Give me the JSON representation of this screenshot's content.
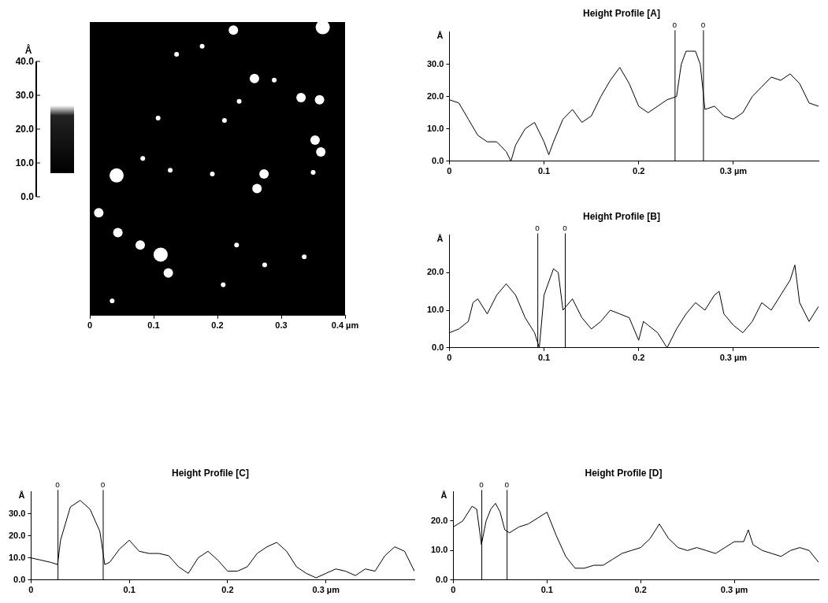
{
  "chart_data": [
    {
      "type": "image",
      "xlim": [
        0,
        0.4
      ],
      "ylim": [
        0,
        0.4
      ],
      "xticks": [
        0,
        0.1,
        0.2,
        0.3,
        {
          "value": 0.4,
          "label": "0.4 µm"
        }
      ],
      "tick_labels": "x",
      "grid": false,
      "color": "#ffffff",
      "spots": {
        "x": [
          0.365,
          0.225,
          0.176,
          0.136,
          0.289,
          0.258,
          0.331,
          0.36,
          0.234,
          0.107,
          0.211,
          0.042,
          0.083,
          0.126,
          0.192,
          0.273,
          0.262,
          0.353,
          0.362,
          0.35,
          0.014,
          0.044,
          0.079,
          0.111,
          0.123,
          0.209,
          0.23,
          0.274,
          0.336,
          0.035
        ],
        "y": [
          0.393,
          0.389,
          0.367,
          0.356,
          0.321,
          0.323,
          0.297,
          0.294,
          0.292,
          0.269,
          0.266,
          0.191,
          0.214,
          0.198,
          0.193,
          0.193,
          0.173,
          0.239,
          0.223,
          0.195,
          0.14,
          0.113,
          0.096,
          0.083,
          0.058,
          0.042,
          0.096,
          0.069,
          0.08,
          0.02
        ],
        "size": [
          3,
          2,
          1,
          1,
          1,
          2,
          2,
          2,
          1,
          1,
          1,
          3,
          1,
          1,
          1,
          2,
          2,
          2,
          2,
          1,
          2,
          2,
          2,
          3,
          2,
          1,
          1,
          1,
          1,
          1
        ]
      },
      "colorbar": {
        "title": "Å",
        "range": [
          0,
          40
        ],
        "ticks": [
          {
            "value": 0,
            "label": "0.0"
          },
          {
            "value": 10,
            "label": "10.0"
          },
          {
            "value": 20,
            "label": "20.0"
          },
          {
            "value": 30,
            "label": "30.0"
          },
          {
            "value": 40,
            "label": "40.0"
          }
        ],
        "span": [
          7,
          27
        ]
      }
    },
    {
      "type": "line",
      "title": "Height Profile [A]",
      "y_label": "Å",
      "color": "#000000",
      "grid": false,
      "xlim": [
        0,
        0.39
      ],
      "ylim": [
        0,
        40
      ],
      "xticks": [
        0,
        0.1,
        0.2,
        {
          "value": 0.3,
          "label": "0.3 µm"
        }
      ],
      "yticks": [
        {
          "value": 0,
          "label": "0.0"
        },
        {
          "value": 10,
          "label": "10.0"
        },
        {
          "value": 20,
          "label": "20.0"
        },
        {
          "value": 30,
          "label": "30.0"
        }
      ],
      "cursors": [
        {
          "x": 0.238,
          "label": "o"
        },
        {
          "x": 0.268,
          "label": "o"
        }
      ],
      "x": [
        0,
        0.01,
        0.02,
        0.03,
        0.04,
        0.05,
        0.06,
        0.065,
        0.07,
        0.08,
        0.09,
        0.1,
        0.105,
        0.11,
        0.12,
        0.13,
        0.14,
        0.15,
        0.16,
        0.17,
        0.18,
        0.19,
        0.2,
        0.21,
        0.22,
        0.23,
        0.24,
        0.245,
        0.25,
        0.26,
        0.265,
        0.27,
        0.28,
        0.29,
        0.3,
        0.31,
        0.32,
        0.33,
        0.34,
        0.35,
        0.36,
        0.37,
        0.38,
        0.39
      ],
      "values": [
        19,
        18,
        13,
        8,
        6,
        6,
        3,
        0,
        5,
        10,
        12,
        6,
        2,
        6,
        13,
        16,
        12,
        14,
        20,
        25,
        29,
        24,
        17,
        15,
        17,
        19,
        20,
        30,
        34,
        34,
        30,
        16,
        17,
        14,
        13,
        15,
        20,
        23,
        26,
        25,
        27,
        24,
        18,
        17
      ]
    },
    {
      "type": "line",
      "title": "Height Profile [B]",
      "y_label": "Å",
      "color": "#000000",
      "grid": false,
      "xlim": [
        0,
        0.39
      ],
      "ylim": [
        0,
        30
      ],
      "xticks": [
        0,
        0.1,
        0.2,
        {
          "value": 0.3,
          "label": "0.3 µm"
        }
      ],
      "yticks": [
        {
          "value": 0,
          "label": "0.0"
        },
        {
          "value": 10,
          "label": "10.0"
        },
        {
          "value": 20,
          "label": "20.0"
        }
      ],
      "cursors": [
        {
          "x": 0.093,
          "label": "o"
        },
        {
          "x": 0.122,
          "label": "o"
        }
      ],
      "x": [
        0,
        0.01,
        0.02,
        0.025,
        0.03,
        0.04,
        0.05,
        0.06,
        0.07,
        0.08,
        0.09,
        0.095,
        0.1,
        0.11,
        0.115,
        0.12,
        0.13,
        0.14,
        0.15,
        0.16,
        0.17,
        0.18,
        0.19,
        0.2,
        0.205,
        0.21,
        0.22,
        0.23,
        0.24,
        0.25,
        0.26,
        0.27,
        0.28,
        0.285,
        0.29,
        0.3,
        0.31,
        0.32,
        0.33,
        0.34,
        0.35,
        0.36,
        0.365,
        0.37,
        0.38,
        0.39
      ],
      "values": [
        4,
        5,
        7,
        12,
        13,
        9,
        14,
        17,
        14,
        8,
        4,
        0,
        14,
        21,
        20,
        10,
        13,
        8,
        5,
        7,
        10,
        9,
        8,
        2,
        7,
        6,
        4,
        0,
        5,
        9,
        12,
        10,
        14,
        15,
        9,
        6,
        4,
        7,
        12,
        10,
        14,
        18,
        22,
        12,
        7,
        11
      ]
    },
    {
      "type": "line",
      "title": "Height Profile [C]",
      "y_label": "Å",
      "color": "#000000",
      "grid": false,
      "xlim": [
        0,
        0.39
      ],
      "ylim": [
        0,
        40
      ],
      "xticks": [
        0,
        0.1,
        0.2,
        {
          "value": 0.3,
          "label": "0.3 µm"
        }
      ],
      "yticks": [
        {
          "value": 0,
          "label": "0.0"
        },
        {
          "value": 10,
          "label": "10.0"
        },
        {
          "value": 20,
          "label": "20.0"
        },
        {
          "value": 30,
          "label": "30.0"
        }
      ],
      "cursors": [
        {
          "x": 0.027,
          "label": "o"
        },
        {
          "x": 0.073,
          "label": "o"
        }
      ],
      "x": [
        0,
        0.01,
        0.02,
        0.027,
        0.03,
        0.04,
        0.05,
        0.06,
        0.07,
        0.075,
        0.08,
        0.09,
        0.1,
        0.11,
        0.12,
        0.13,
        0.14,
        0.15,
        0.16,
        0.17,
        0.18,
        0.19,
        0.2,
        0.21,
        0.22,
        0.23,
        0.24,
        0.25,
        0.26,
        0.27,
        0.28,
        0.29,
        0.3,
        0.31,
        0.32,
        0.33,
        0.34,
        0.35,
        0.36,
        0.37,
        0.38,
        0.39
      ],
      "values": [
        10,
        9,
        8,
        7,
        18,
        33,
        36,
        32,
        22,
        7,
        8,
        14,
        18,
        13,
        12,
        12,
        11,
        6,
        3,
        10,
        13,
        9,
        4,
        4,
        6,
        12,
        15,
        17,
        13,
        6,
        3,
        1,
        3,
        5,
        4,
        2,
        5,
        4,
        11,
        15,
        13,
        4
      ]
    },
    {
      "type": "line",
      "title": "Height Profile [D]",
      "y_label": "Å",
      "color": "#000000",
      "grid": false,
      "xlim": [
        0,
        0.39
      ],
      "ylim": [
        0,
        30
      ],
      "xticks": [
        0,
        0.1,
        0.2,
        {
          "value": 0.3,
          "label": "0.3 µm"
        }
      ],
      "yticks": [
        {
          "value": 0,
          "label": "0.0"
        },
        {
          "value": 10,
          "label": "10.0"
        },
        {
          "value": 20,
          "label": "20.0"
        }
      ],
      "cursors": [
        {
          "x": 0.03,
          "label": "o"
        },
        {
          "x": 0.057,
          "label": "o"
        }
      ],
      "x": [
        0,
        0.01,
        0.02,
        0.025,
        0.03,
        0.035,
        0.04,
        0.045,
        0.05,
        0.055,
        0.06,
        0.07,
        0.08,
        0.09,
        0.1,
        0.11,
        0.12,
        0.13,
        0.14,
        0.15,
        0.16,
        0.17,
        0.18,
        0.19,
        0.2,
        0.21,
        0.22,
        0.23,
        0.24,
        0.25,
        0.26,
        0.27,
        0.28,
        0.29,
        0.3,
        0.31,
        0.315,
        0.32,
        0.33,
        0.34,
        0.35,
        0.36,
        0.37,
        0.38,
        0.39
      ],
      "values": [
        18,
        20,
        25,
        24,
        12,
        20,
        24,
        26,
        23,
        17,
        16,
        18,
        19,
        21,
        23,
        15,
        8,
        4,
        4,
        5,
        5,
        7,
        9,
        10,
        11,
        14,
        19,
        14,
        11,
        10,
        11,
        10,
        9,
        11,
        13,
        13,
        17,
        12,
        10,
        9,
        8,
        10,
        11,
        10,
        6
      ]
    }
  ]
}
